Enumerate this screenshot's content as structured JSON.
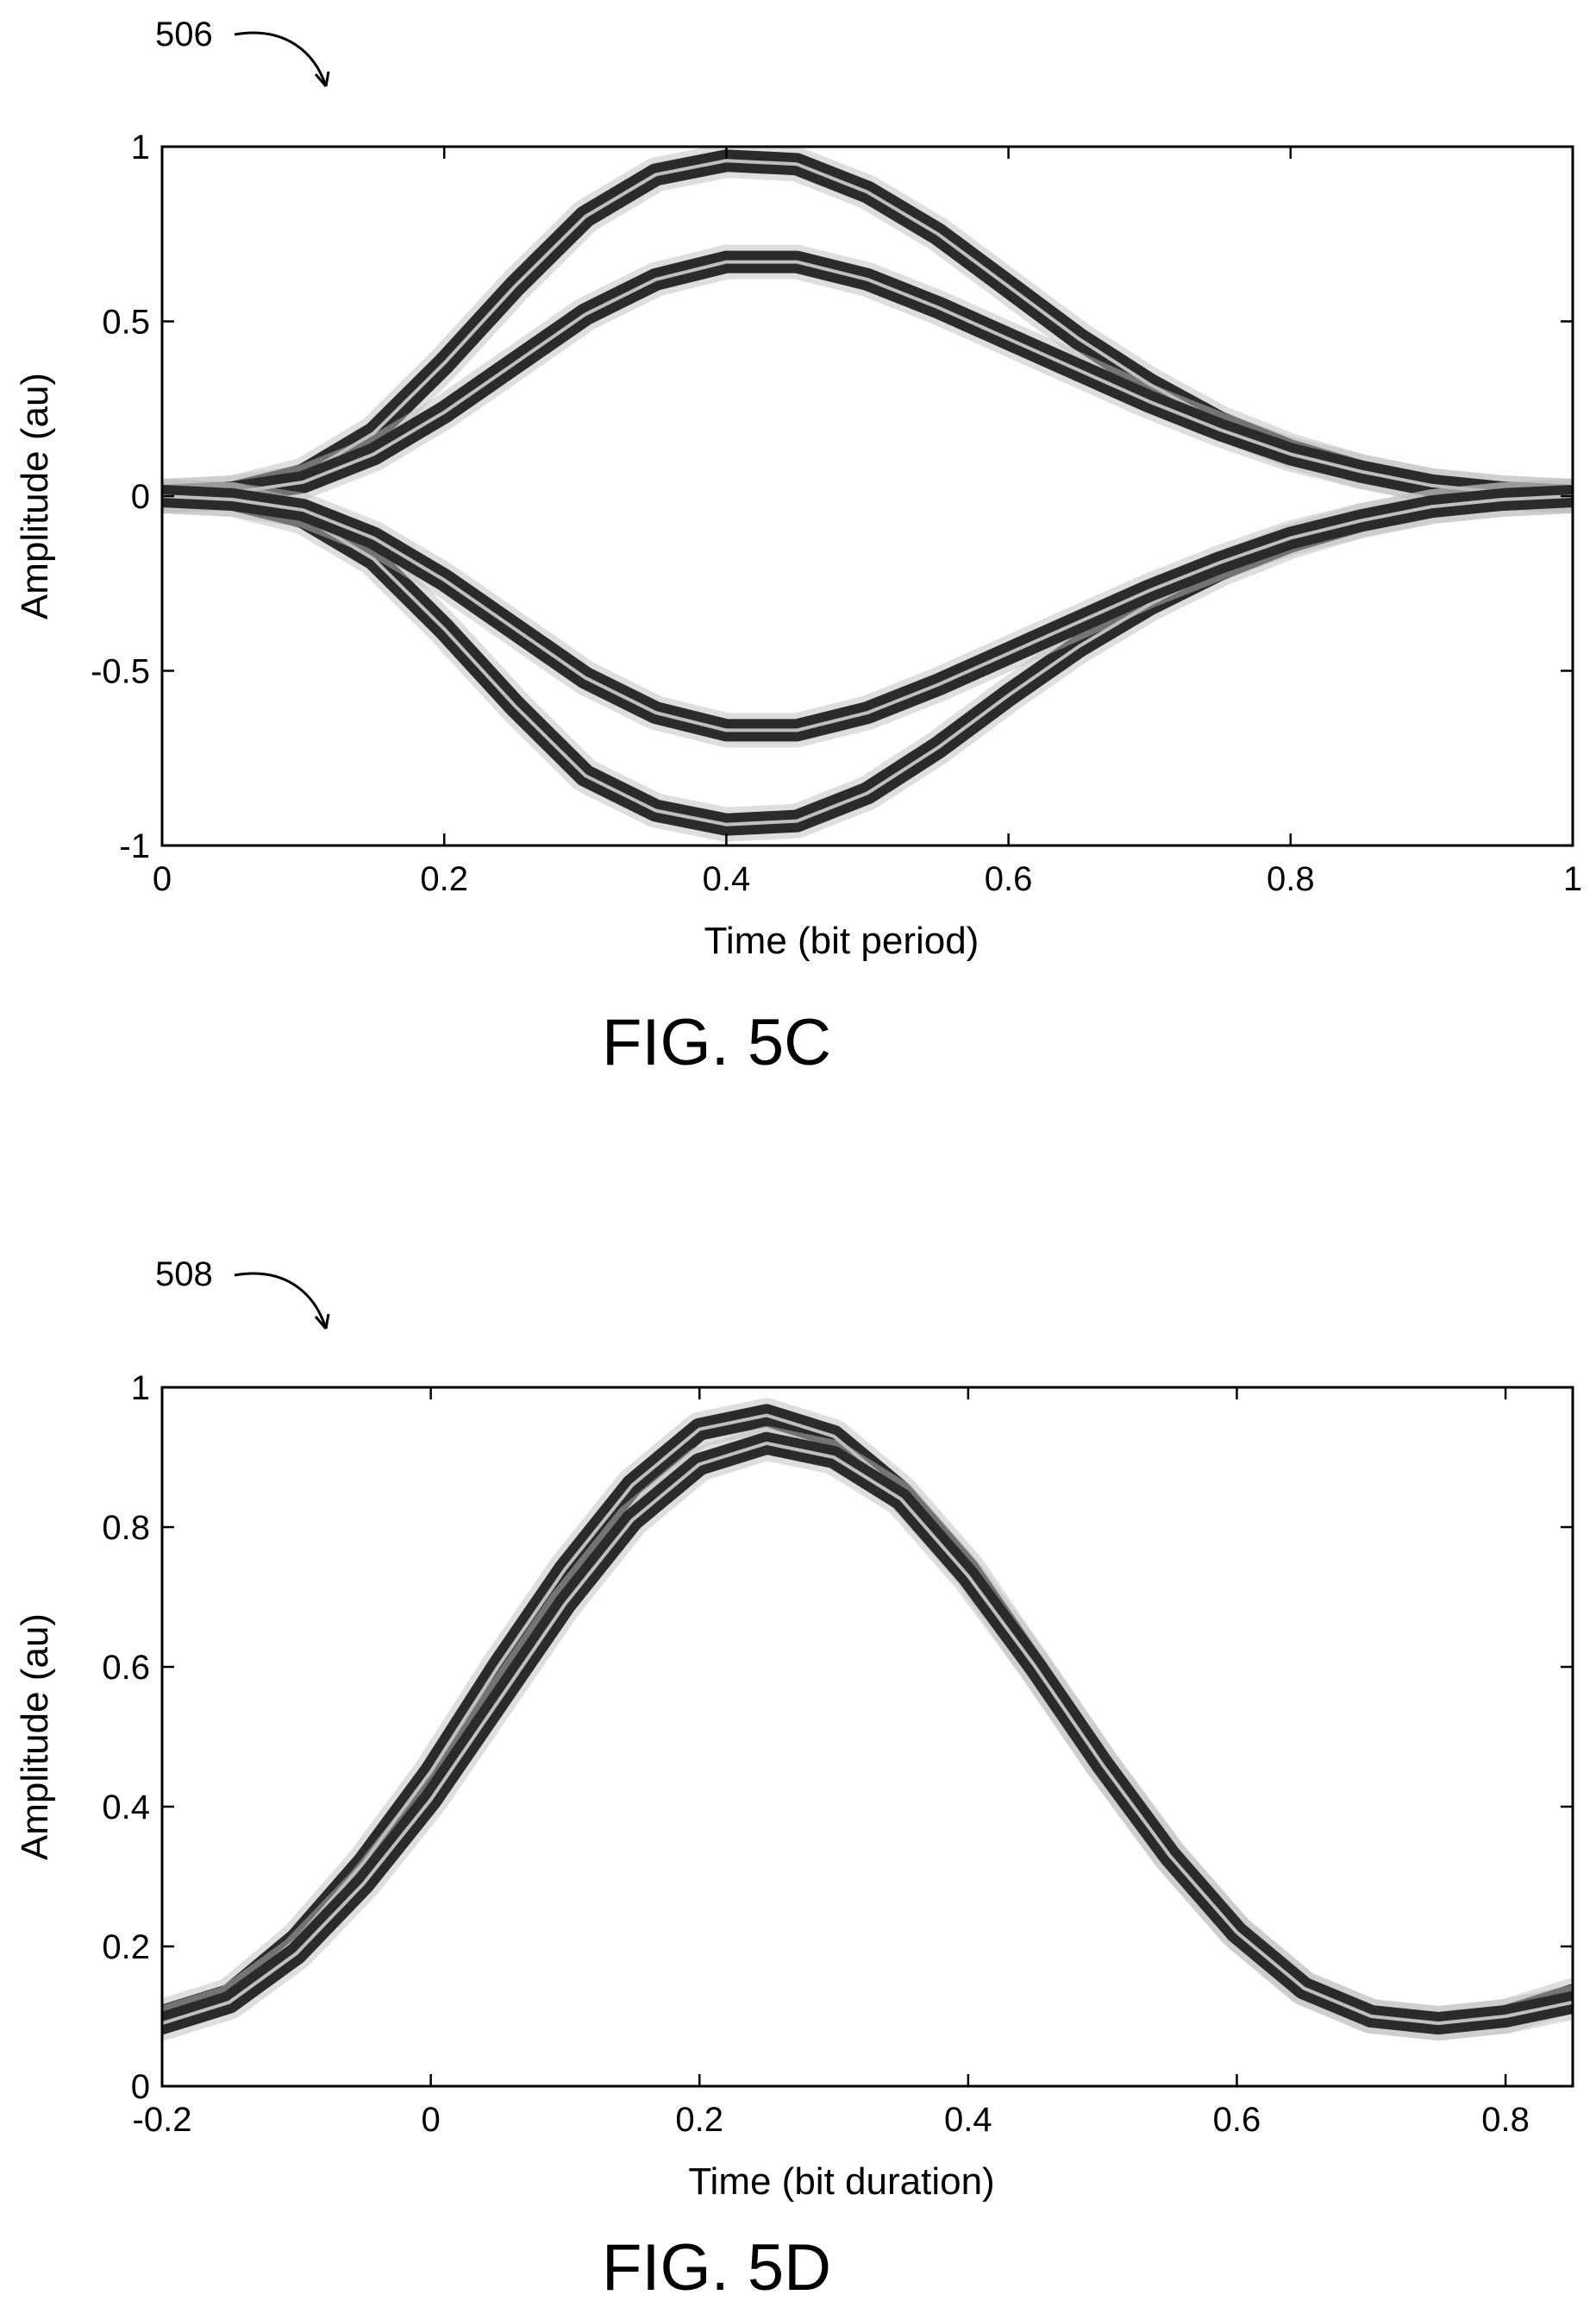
{
  "figures": [
    {
      "reference": "506",
      "caption": "FIG. 5C"
    },
    {
      "reference": "508",
      "caption": "FIG. 5D"
    }
  ],
  "chart_data": [
    {
      "type": "line",
      "title": "",
      "xlabel": "Time (bit period)",
      "ylabel": "Amplitude (au)",
      "xlim": [
        0,
        1
      ],
      "ylim": [
        -1,
        1
      ],
      "xticks": [
        0,
        0.2,
        0.4,
        0.6,
        0.8,
        1
      ],
      "yticks": [
        -1,
        -0.5,
        0,
        0.5,
        1
      ],
      "xtick_labels": [
        "0",
        "0.2",
        "0.4",
        "0.6",
        "0.8",
        "1"
      ],
      "ytick_labels": [
        "-1",
        "-0.5",
        "0",
        "0.5",
        "1"
      ],
      "grid": false,
      "trace_color": "#2b2b2b",
      "series": [
        {
          "x": [
            0,
            0.05,
            0.1,
            0.15,
            0.2,
            0.25,
            0.3,
            0.35,
            0.4,
            0.45,
            0.5,
            0.55,
            0.6,
            0.65,
            0.7,
            0.75,
            0.8,
            0.85,
            0.9,
            0.95,
            1
          ],
          "y": [
            0,
            0.01,
            0.06,
            0.18,
            0.38,
            0.6,
            0.8,
            0.92,
            0.96,
            0.95,
            0.87,
            0.75,
            0.6,
            0.45,
            0.32,
            0.21,
            0.13,
            0.07,
            0.03,
            0.01,
            0
          ]
        },
        {
          "x": [
            0,
            0.05,
            0.1,
            0.15,
            0.2,
            0.25,
            0.3,
            0.35,
            0.4,
            0.45,
            0.5,
            0.55,
            0.6,
            0.65,
            0.7,
            0.75,
            0.8,
            0.85,
            0.9,
            0.95,
            1
          ],
          "y": [
            0,
            0.01,
            0.04,
            0.12,
            0.24,
            0.38,
            0.52,
            0.62,
            0.67,
            0.67,
            0.62,
            0.54,
            0.45,
            0.36,
            0.27,
            0.19,
            0.12,
            0.07,
            0.03,
            0.01,
            0
          ]
        },
        {
          "x": [
            0,
            0.05,
            0.1,
            0.15,
            0.2,
            0.25,
            0.3,
            0.35,
            0.4,
            0.45,
            0.5,
            0.55,
            0.6,
            0.65,
            0.7,
            0.75,
            0.8,
            0.85,
            0.9,
            0.95,
            1
          ],
          "y": [
            0,
            -0.01,
            -0.06,
            -0.18,
            -0.38,
            -0.6,
            -0.8,
            -0.9,
            -0.94,
            -0.93,
            -0.85,
            -0.72,
            -0.57,
            -0.43,
            -0.31,
            -0.21,
            -0.13,
            -0.07,
            -0.03,
            -0.01,
            0
          ]
        },
        {
          "x": [
            0,
            0.05,
            0.1,
            0.15,
            0.2,
            0.25,
            0.3,
            0.35,
            0.4,
            0.45,
            0.5,
            0.55,
            0.6,
            0.65,
            0.7,
            0.75,
            0.8,
            0.85,
            0.9,
            0.95,
            1
          ],
          "y": [
            0,
            -0.01,
            -0.04,
            -0.12,
            -0.24,
            -0.38,
            -0.52,
            -0.62,
            -0.67,
            -0.67,
            -0.62,
            -0.54,
            -0.45,
            -0.36,
            -0.27,
            -0.19,
            -0.12,
            -0.07,
            -0.03,
            -0.01,
            0
          ]
        }
      ]
    },
    {
      "type": "line",
      "title": "",
      "xlabel": "Time (bit duration)",
      "ylabel": "Amplitude (au)",
      "xlim": [
        -0.2,
        0.85
      ],
      "ylim": [
        0,
        1
      ],
      "xticks": [
        -0.2,
        0,
        0.2,
        0.4,
        0.6,
        0.8
      ],
      "yticks": [
        0,
        0.2,
        0.4,
        0.6,
        0.8,
        1
      ],
      "xtick_labels": [
        "-0.2",
        "0",
        "0.2",
        "0.4",
        "0.6",
        "0.8"
      ],
      "ytick_labels": [
        "0",
        "0.2",
        "0.4",
        "0.6",
        "0.8",
        "1"
      ],
      "grid": false,
      "trace_color": "#2b2b2b",
      "series": [
        {
          "x": [
            -0.2,
            -0.15,
            -0.1,
            -0.05,
            0,
            0.05,
            0.1,
            0.15,
            0.2,
            0.25,
            0.3,
            0.35,
            0.4,
            0.45,
            0.5,
            0.55,
            0.6,
            0.65,
            0.7,
            0.75,
            0.8,
            0.85
          ],
          "y": [
            0.1,
            0.13,
            0.21,
            0.32,
            0.45,
            0.6,
            0.74,
            0.86,
            0.94,
            0.96,
            0.93,
            0.85,
            0.74,
            0.6,
            0.46,
            0.33,
            0.22,
            0.14,
            0.1,
            0.09,
            0.1,
            0.13
          ]
        },
        {
          "x": [
            -0.2,
            -0.15,
            -0.1,
            -0.05,
            0,
            0.05,
            0.1,
            0.15,
            0.2,
            0.25,
            0.3,
            0.35,
            0.4,
            0.45,
            0.5,
            0.55,
            0.6,
            0.65,
            0.7,
            0.75,
            0.8,
            0.85
          ],
          "y": [
            0.09,
            0.12,
            0.19,
            0.29,
            0.41,
            0.55,
            0.69,
            0.81,
            0.89,
            0.92,
            0.9,
            0.84,
            0.73,
            0.6,
            0.46,
            0.33,
            0.22,
            0.14,
            0.1,
            0.09,
            0.1,
            0.12
          ]
        }
      ]
    }
  ]
}
